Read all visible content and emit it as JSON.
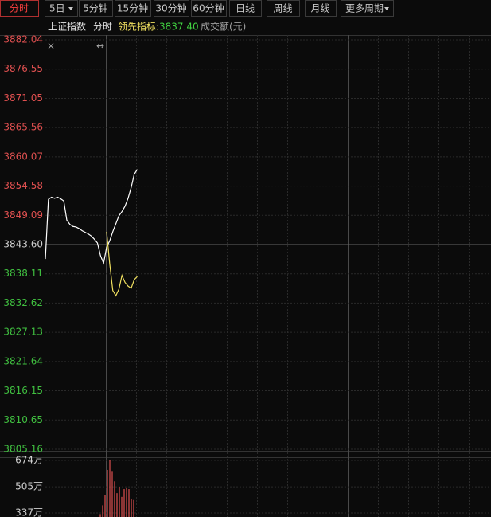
{
  "toolbar": {
    "tabs": [
      "分时",
      "5日",
      "5分钟",
      "15分钟",
      "30分钟",
      "60分钟",
      "日线",
      "周线",
      "月线",
      "更多周期"
    ]
  },
  "info": {
    "name": "上证指数",
    "mode": "分时",
    "indicator_label": "领先指标:",
    "indicator_value": "3837.40",
    "volume_label": "成交额(元)"
  },
  "chart_data": {
    "type": "line",
    "ylim": [
      3805.16,
      3882.04
    ],
    "yticks": [
      3882.04,
      3876.55,
      3871.05,
      3865.56,
      3860.07,
      3854.58,
      3849.09,
      {
        "value": 3843.6,
        "label": "3843.60"
      },
      3838.11,
      3832.62,
      3827.13,
      3821.64,
      3816.15,
      3810.65,
      3805.16
    ],
    "grid": true,
    "series": [
      {
        "color": "#ffffff",
        "values": [
          3840.9,
          3852.1,
          3852.5,
          3852.3,
          3852.5,
          3852.2,
          3851.8,
          3848.2,
          3847.4,
          3847.0,
          3846.9,
          3846.6,
          3846.2,
          3845.9,
          3845.6,
          3845.2,
          3844.6,
          3843.9,
          3841.5,
          3840.1,
          3843.1,
          3844.3,
          3846.0,
          3847.5,
          3849.0,
          3849.8,
          3850.8,
          3852.3,
          3854.3,
          3856.8,
          3857.7
        ]
      },
      {
        "color": "#f0e060",
        "values": [
          null,
          null,
          null,
          null,
          null,
          null,
          null,
          null,
          null,
          null,
          null,
          null,
          null,
          null,
          null,
          null,
          null,
          null,
          null,
          null,
          3846.0,
          3840.0,
          3835.0,
          3834.0,
          3835.2,
          3837.8,
          3836.5,
          3835.8,
          3835.4,
          3837.0,
          3837.6
        ]
      }
    ],
    "volume": {
      "type": "bar",
      "color": "#e05050",
      "ylim": [
        311,
        676
      ],
      "yticks": [
        {
          "value": 674,
          "label": "674万"
        },
        {
          "value": 505,
          "label": "505万"
        },
        {
          "value": 337,
          "label": "337万"
        }
      ],
      "values": [
        330,
        386,
        452,
        613,
        674,
        606,
        540,
        464,
        505,
        440,
        490,
        500,
        490,
        429,
        420
      ]
    }
  }
}
